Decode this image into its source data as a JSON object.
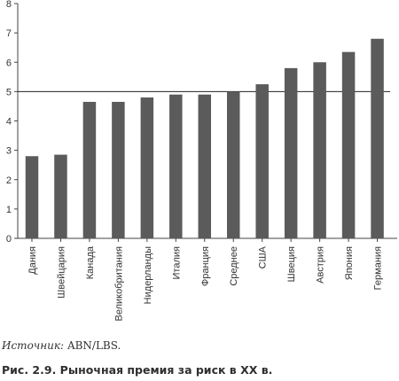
{
  "chart_data": {
    "type": "bar",
    "categories": [
      "Дания",
      "Швейцария",
      "Канада",
      "Великобритания",
      "Нидерланды",
      "Италия",
      "Франция",
      "Среднее",
      "США",
      "Швеция",
      "Австрия",
      "Япония",
      "Германия"
    ],
    "values": [
      2.8,
      2.85,
      4.65,
      4.65,
      4.8,
      4.9,
      4.9,
      5.0,
      5.25,
      5.8,
      6.0,
      6.35,
      6.8
    ],
    "ylim": [
      0,
      8
    ],
    "yticks": [
      "0",
      "1",
      "2",
      "3",
      "4",
      "5",
      "6",
      "7",
      "8"
    ],
    "reference_line": 5,
    "bar_color": "#5b5b5b",
    "grid": false
  },
  "source": {
    "label": "Источник:",
    "value": "ABN/LBS."
  },
  "caption": "Рис. 2.9. Рыночная премия за риск в XX в."
}
